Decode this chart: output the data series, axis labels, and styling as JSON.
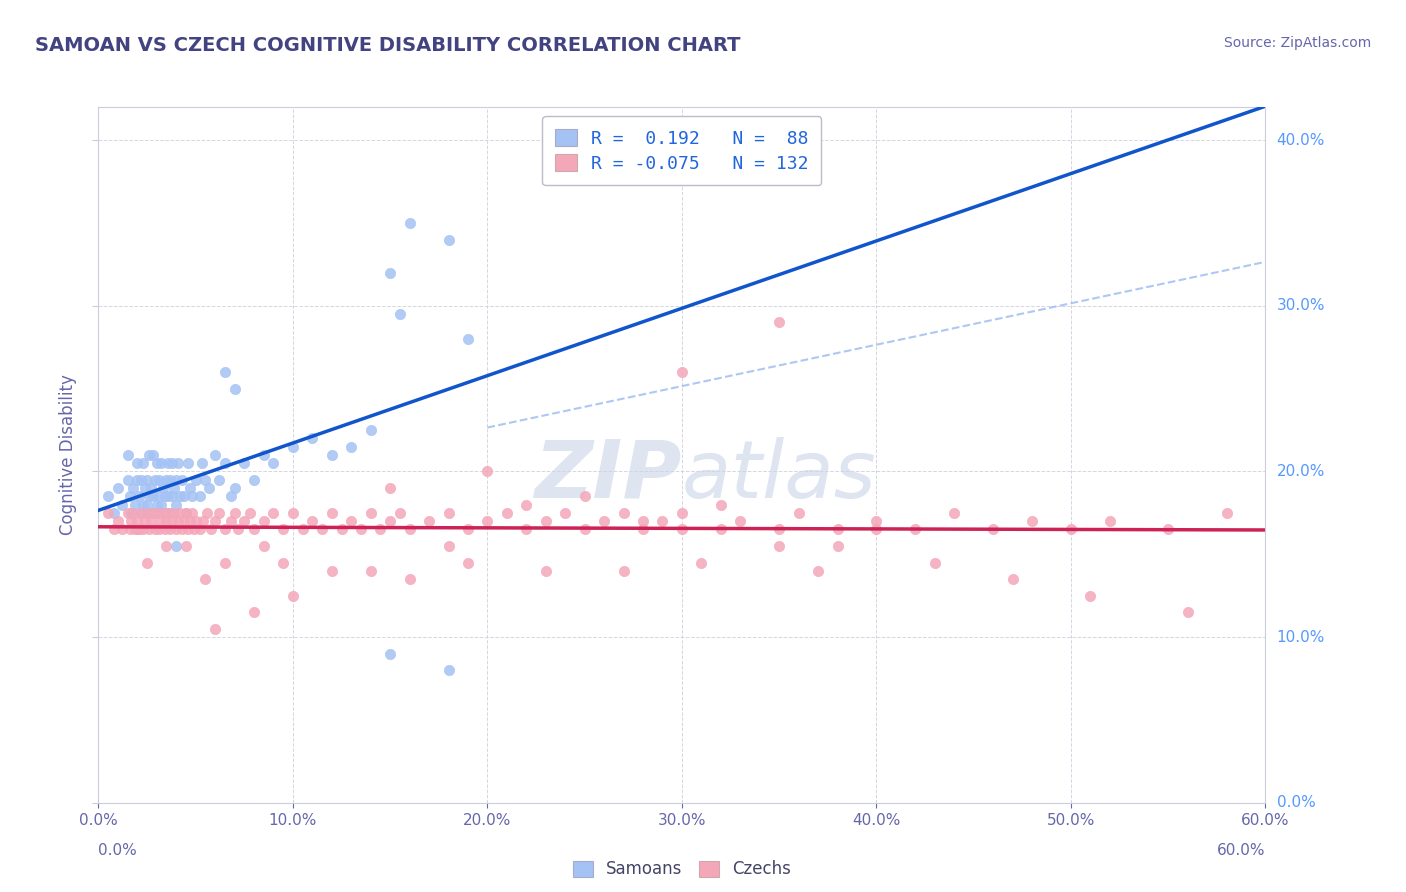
{
  "title": "SAMOAN VS CZECH COGNITIVE DISABILITY CORRELATION CHART",
  "source": "Source: ZipAtlas.com",
  "ylabel": "Cognitive Disability",
  "xmin": 0.0,
  "xmax": 0.6,
  "ymin": 0.0,
  "ymax": 0.42,
  "samoans_R": 0.192,
  "samoans_N": 88,
  "czechs_R": -0.075,
  "czechs_N": 132,
  "samoan_color": "#a4c2f4",
  "czech_color": "#f4a7b9",
  "samoan_line_color": "#1155cc",
  "czech_line_color": "#cc2255",
  "background_color": "#ffffff",
  "grid_color": "#ccccdd",
  "title_color": "#434381",
  "axis_label_color": "#6666aa",
  "tick_color": "#6666aa",
  "right_axis_color": "#5599ff",
  "legend_text_color": "#2266dd",
  "watermark_color": "#c8d4e8",
  "samoans_x": [
    0.005,
    0.008,
    0.01,
    0.012,
    0.015,
    0.015,
    0.016,
    0.017,
    0.018,
    0.019,
    0.02,
    0.02,
    0.021,
    0.022,
    0.022,
    0.023,
    0.023,
    0.024,
    0.025,
    0.025,
    0.026,
    0.026,
    0.027,
    0.027,
    0.028,
    0.028,
    0.029,
    0.029,
    0.03,
    0.03,
    0.031,
    0.031,
    0.032,
    0.032,
    0.033,
    0.033,
    0.034,
    0.035,
    0.035,
    0.036,
    0.036,
    0.037,
    0.037,
    0.038,
    0.038,
    0.039,
    0.04,
    0.04,
    0.041,
    0.042,
    0.043,
    0.044,
    0.045,
    0.046,
    0.047,
    0.048,
    0.05,
    0.052,
    0.053,
    0.055,
    0.057,
    0.06,
    0.062,
    0.065,
    0.068,
    0.07,
    0.075,
    0.08,
    0.085,
    0.09,
    0.1,
    0.11,
    0.12,
    0.13,
    0.14,
    0.15,
    0.155,
    0.16,
    0.18,
    0.19,
    0.065,
    0.07,
    0.15,
    0.18,
    0.04,
    0.035,
    0.025,
    0.02
  ],
  "samoans_y": [
    0.185,
    0.175,
    0.19,
    0.18,
    0.21,
    0.195,
    0.185,
    0.175,
    0.19,
    0.18,
    0.195,
    0.205,
    0.185,
    0.175,
    0.195,
    0.18,
    0.205,
    0.19,
    0.175,
    0.195,
    0.185,
    0.21,
    0.175,
    0.19,
    0.185,
    0.21,
    0.175,
    0.195,
    0.18,
    0.205,
    0.185,
    0.195,
    0.18,
    0.205,
    0.175,
    0.19,
    0.185,
    0.175,
    0.195,
    0.185,
    0.205,
    0.175,
    0.195,
    0.185,
    0.205,
    0.19,
    0.18,
    0.195,
    0.205,
    0.185,
    0.195,
    0.185,
    0.175,
    0.205,
    0.19,
    0.185,
    0.195,
    0.185,
    0.205,
    0.195,
    0.19,
    0.21,
    0.195,
    0.205,
    0.185,
    0.19,
    0.205,
    0.195,
    0.21,
    0.205,
    0.215,
    0.22,
    0.21,
    0.215,
    0.225,
    0.32,
    0.295,
    0.35,
    0.34,
    0.28,
    0.26,
    0.25,
    0.09,
    0.08,
    0.155,
    0.175,
    0.18,
    0.165
  ],
  "czechs_x": [
    0.005,
    0.008,
    0.01,
    0.012,
    0.015,
    0.016,
    0.017,
    0.018,
    0.019,
    0.02,
    0.021,
    0.022,
    0.023,
    0.024,
    0.025,
    0.026,
    0.027,
    0.028,
    0.029,
    0.03,
    0.031,
    0.032,
    0.033,
    0.034,
    0.035,
    0.036,
    0.037,
    0.038,
    0.039,
    0.04,
    0.041,
    0.042,
    0.043,
    0.044,
    0.045,
    0.046,
    0.047,
    0.048,
    0.049,
    0.05,
    0.052,
    0.054,
    0.056,
    0.058,
    0.06,
    0.062,
    0.065,
    0.068,
    0.07,
    0.072,
    0.075,
    0.078,
    0.08,
    0.085,
    0.09,
    0.095,
    0.1,
    0.105,
    0.11,
    0.115,
    0.12,
    0.125,
    0.13,
    0.135,
    0.14,
    0.145,
    0.15,
    0.155,
    0.16,
    0.17,
    0.18,
    0.19,
    0.2,
    0.21,
    0.22,
    0.23,
    0.24,
    0.25,
    0.26,
    0.27,
    0.28,
    0.29,
    0.3,
    0.32,
    0.33,
    0.35,
    0.36,
    0.38,
    0.4,
    0.42,
    0.44,
    0.46,
    0.48,
    0.5,
    0.52,
    0.55,
    0.58,
    0.15,
    0.2,
    0.25,
    0.3,
    0.35,
    0.4,
    0.28,
    0.32,
    0.38,
    0.22,
    0.18,
    0.14,
    0.1,
    0.08,
    0.06,
    0.045,
    0.035,
    0.025,
    0.055,
    0.065,
    0.085,
    0.095,
    0.12,
    0.16,
    0.19,
    0.23,
    0.27,
    0.31,
    0.37,
    0.43,
    0.47,
    0.51,
    0.56,
    0.3,
    0.35
  ],
  "czechs_y": [
    0.175,
    0.165,
    0.17,
    0.165,
    0.175,
    0.165,
    0.17,
    0.175,
    0.165,
    0.17,
    0.165,
    0.175,
    0.165,
    0.17,
    0.175,
    0.165,
    0.17,
    0.175,
    0.165,
    0.175,
    0.165,
    0.17,
    0.175,
    0.165,
    0.17,
    0.175,
    0.165,
    0.17,
    0.175,
    0.165,
    0.17,
    0.175,
    0.165,
    0.17,
    0.175,
    0.165,
    0.17,
    0.175,
    0.165,
    0.17,
    0.165,
    0.17,
    0.175,
    0.165,
    0.17,
    0.175,
    0.165,
    0.17,
    0.175,
    0.165,
    0.17,
    0.175,
    0.165,
    0.17,
    0.175,
    0.165,
    0.175,
    0.165,
    0.17,
    0.165,
    0.175,
    0.165,
    0.17,
    0.165,
    0.175,
    0.165,
    0.17,
    0.175,
    0.165,
    0.17,
    0.175,
    0.165,
    0.17,
    0.175,
    0.165,
    0.17,
    0.175,
    0.165,
    0.17,
    0.175,
    0.165,
    0.17,
    0.175,
    0.165,
    0.17,
    0.165,
    0.175,
    0.165,
    0.17,
    0.165,
    0.175,
    0.165,
    0.17,
    0.165,
    0.17,
    0.165,
    0.175,
    0.19,
    0.2,
    0.185,
    0.165,
    0.155,
    0.165,
    0.17,
    0.18,
    0.155,
    0.18,
    0.155,
    0.14,
    0.125,
    0.115,
    0.105,
    0.155,
    0.155,
    0.145,
    0.135,
    0.145,
    0.155,
    0.145,
    0.14,
    0.135,
    0.145,
    0.14,
    0.14,
    0.145,
    0.14,
    0.145,
    0.135,
    0.125,
    0.115,
    0.26,
    0.29
  ]
}
